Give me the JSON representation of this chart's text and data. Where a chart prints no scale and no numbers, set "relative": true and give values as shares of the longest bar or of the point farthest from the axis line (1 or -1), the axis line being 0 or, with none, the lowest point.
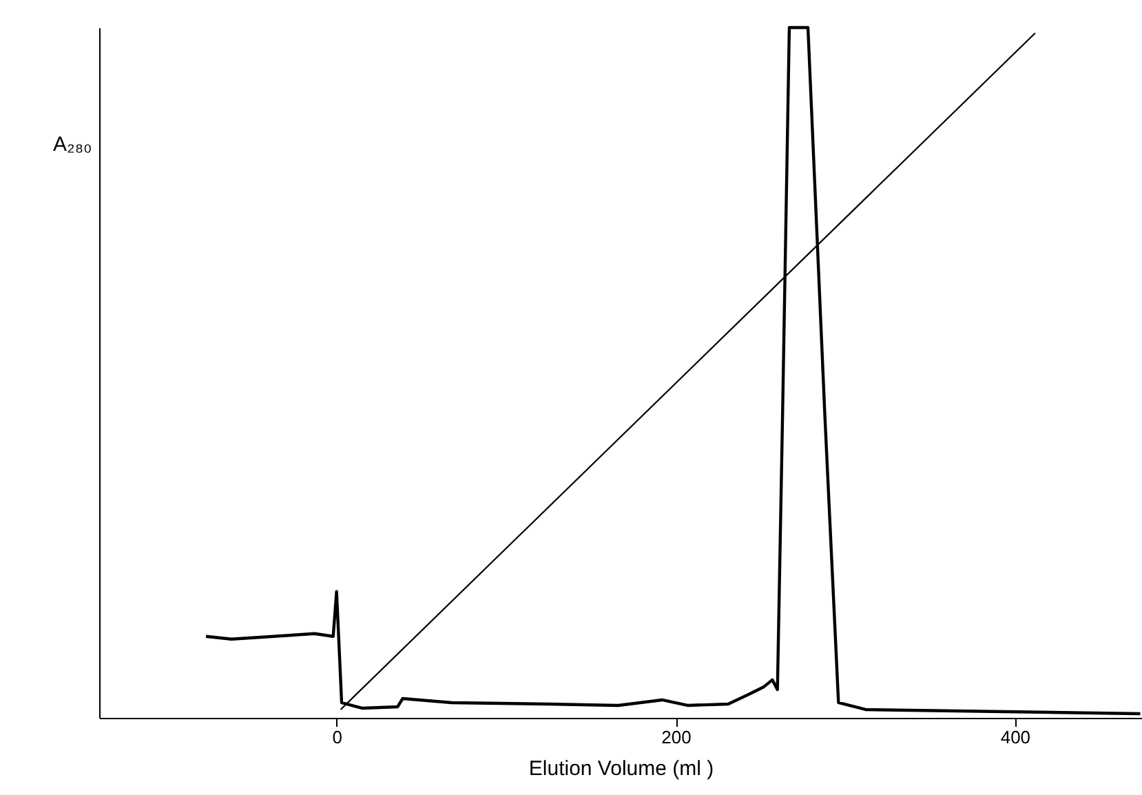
{
  "chart_data": {
    "type": "line",
    "relative": true,
    "xlabel": "Elution Volume (ml )",
    "ylabel": "A₂₈₀",
    "xlim": [
      -140,
      475
    ],
    "xticks": [
      0,
      200,
      400
    ],
    "tick_labels": "x",
    "marker": "none",
    "line_style": "solid",
    "series": [
      {
        "color": "#000000",
        "x": [
          -77,
          -62,
          -37,
          -13,
          -2,
          0,
          3,
          15,
          36,
          39,
          68,
          125,
          166,
          192,
          207,
          231,
          243,
          252,
          257,
          260,
          263,
          267,
          278,
          288,
          296,
          312,
          474
        ],
        "values": [
          0.118,
          0.114,
          0.118,
          0.122,
          0.118,
          0.183,
          0.022,
          0.014,
          0.016,
          0.028,
          0.022,
          0.02,
          0.018,
          0.026,
          0.018,
          0.02,
          0.034,
          0.045,
          0.055,
          0.041,
          0.436,
          1.0,
          1.0,
          0.436,
          0.022,
          0.012,
          0.006
        ]
      },
      {
        "color": "#000000",
        "x": [
          2.4,
          412
        ],
        "values": [
          0.012,
          0.992
        ]
      }
    ]
  }
}
